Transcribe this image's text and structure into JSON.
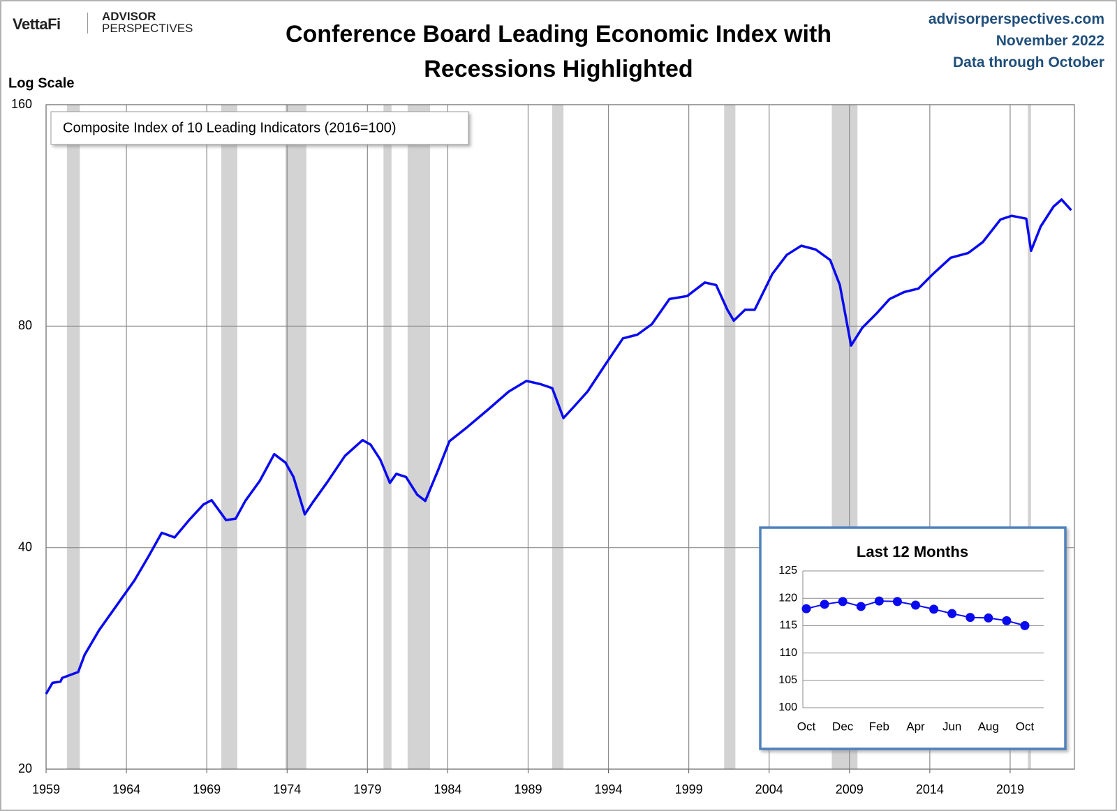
{
  "header": {
    "logo": "VettaFi",
    "brand_top": "ADVISOR",
    "brand_bottom": "PERSPECTIVES",
    "site": "advisorperspectives.com",
    "date": "November 2022",
    "note": "Data through October"
  },
  "chart_data": [
    {
      "type": "line",
      "title": "Conference Board Leading Economic Index with Recessions Highlighted",
      "y_label": "Log Scale",
      "log_scale": true,
      "grid": true,
      "legend": "upper left",
      "xlim": [
        1959,
        2023
      ],
      "xticks": [
        1959,
        1964,
        1969,
        1974,
        1979,
        1984,
        1989,
        1994,
        1999,
        2004,
        2009,
        2014,
        2019
      ],
      "ylim": [
        20,
        160
      ],
      "yticks": [
        20,
        40,
        80,
        160
      ],
      "recession_color": "#d3d3d3",
      "recessions": [
        [
          1960.3,
          1961.1
        ],
        [
          1969.9,
          1970.9
        ],
        [
          1973.9,
          1975.2
        ],
        [
          1980.0,
          1980.5
        ],
        [
          1981.5,
          1982.9
        ],
        [
          1990.5,
          1991.2
        ],
        [
          2001.2,
          2001.9
        ],
        [
          2007.9,
          2009.5
        ],
        [
          2020.1,
          2020.3
        ]
      ],
      "x": [
        1959.0,
        1959.4,
        1959.9,
        1960.0,
        1961.0,
        1961.4,
        1962.3,
        1963.4,
        1964.5,
        1965.4,
        1966.2,
        1967.0,
        1967.9,
        1968.8,
        1969.3,
        1970.2,
        1970.8,
        1971.4,
        1972.3,
        1973.2,
        1973.9,
        1974.4,
        1975.1,
        1975.6,
        1976.5,
        1977.6,
        1978.7,
        1979.2,
        1979.8,
        1980.4,
        1980.8,
        1981.4,
        1982.1,
        1982.6,
        1983.4,
        1984.1,
        1985.2,
        1986.5,
        1987.8,
        1988.9,
        1989.8,
        1990.5,
        1991.2,
        1991.8,
        1992.7,
        1993.8,
        1994.9,
        1995.8,
        1996.7,
        1997.8,
        1998.9,
        2000.0,
        2000.7,
        2001.4,
        2001.8,
        2002.5,
        2003.1,
        2004.2,
        2005.1,
        2006.0,
        2006.9,
        2007.8,
        2008.4,
        2009.1,
        2009.8,
        2010.7,
        2011.5,
        2012.4,
        2013.3,
        2014.2,
        2015.3,
        2016.4,
        2017.3,
        2018.4,
        2019.1,
        2020.0,
        2020.3,
        2020.9,
        2021.7,
        2022.2,
        2022.8
      ],
      "series": [
        {
          "name": "Composite Index of 10 Leading Indicators (2016=100)",
          "color": "#0a0af0",
          "values": [
            25.3,
            26.2,
            26.3,
            26.6,
            27.1,
            28.6,
            30.9,
            33.4,
            36.1,
            39.0,
            41.9,
            41.3,
            43.6,
            45.8,
            46.4,
            43.6,
            43.8,
            46.3,
            49.3,
            53.6,
            52.2,
            49.9,
            44.4,
            46.1,
            49.1,
            53.3,
            56.0,
            55.2,
            52.7,
            49.0,
            50.4,
            49.9,
            47.2,
            46.3,
            51.0,
            55.8,
            58.3,
            61.6,
            65.2,
            67.4,
            66.7,
            65.9,
            60.0,
            62.0,
            65.2,
            70.9,
            77.0,
            77.9,
            80.5,
            87.1,
            87.9,
            91.7,
            91.0,
            84.2,
            81.4,
            84.2,
            84.2,
            94.2,
            100,
            102.9,
            101.7,
            98.4,
            91.0,
            75.3,
            79.6,
            83.3,
            87.1,
            89.0,
            90.0,
            94.2,
            99.1,
            100.6,
            104.1,
            111.7,
            113.0,
            112.0,
            101.3,
            109.3,
            116.3,
            118.9,
            115.0
          ]
        }
      ]
    },
    {
      "type": "line",
      "title": "Last 12 Months",
      "markers": true,
      "grid": true,
      "categories": [
        "Oct",
        null,
        "Dec",
        null,
        "Feb",
        null,
        "Apr",
        null,
        "Jun",
        null,
        "Aug",
        null,
        "Oct"
      ],
      "ylim": [
        100,
        125
      ],
      "yticks": [
        100,
        105,
        110,
        115,
        120,
        125
      ],
      "series": [
        {
          "name": null,
          "color": "#0a0af0",
          "values": [
            118.1,
            118.9,
            119.4,
            118.5,
            119.5,
            119.4,
            118.75,
            118.0,
            117.2,
            116.5,
            116.4,
            115.9,
            115.0
          ]
        }
      ]
    }
  ]
}
